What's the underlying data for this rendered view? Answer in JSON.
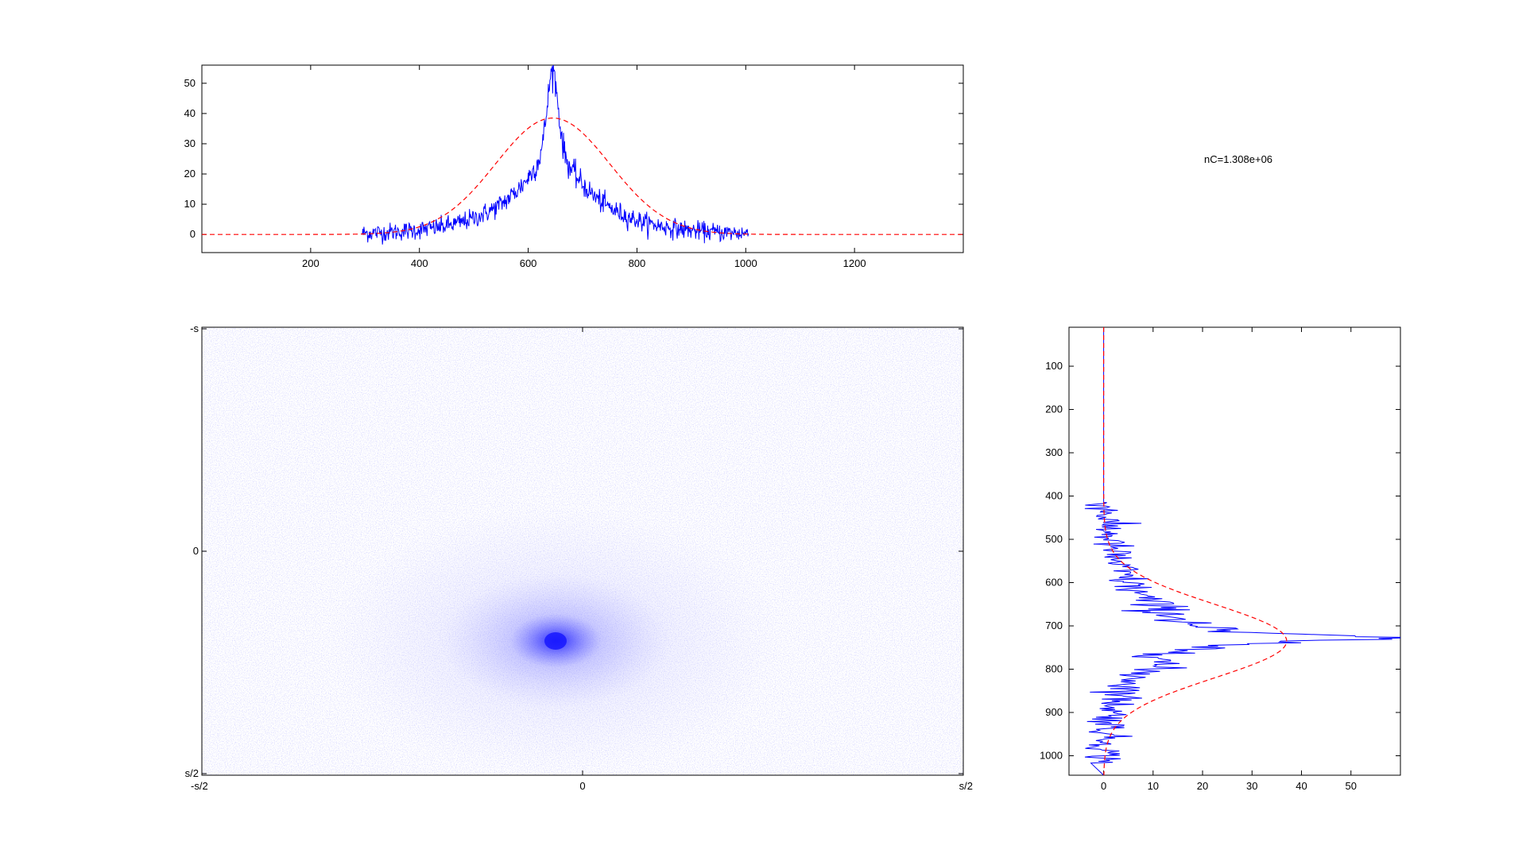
{
  "annotation": "nC=1.308e+06",
  "colors": {
    "measured": "#0000ff",
    "fit": "#ff0000",
    "axis": "#000000",
    "image_tint": "#4a4aff"
  },
  "chart_data": [
    {
      "id": "top-profile",
      "type": "line",
      "xlim": [
        0,
        1400
      ],
      "ylim": [
        -6,
        56
      ],
      "xticks": [
        200,
        400,
        600,
        800,
        1000,
        1200
      ],
      "yticks": [
        0,
        10,
        20,
        30,
        40,
        50
      ],
      "xtick_labels": [
        "200",
        "400",
        "600",
        "800",
        "1000",
        "1200"
      ],
      "ytick_labels": [
        "0",
        "10",
        "20",
        "30",
        "40",
        "50"
      ],
      "series": [
        {
          "style": "solid-blue",
          "x_range": [
            295,
            1005
          ],
          "peak_x": 645,
          "peak_y": 56,
          "baseline": 0,
          "noise": 1.5
        },
        {
          "style": "dashed-red",
          "model": "gaussian",
          "x_range": [
            0,
            1400
          ],
          "center": 645,
          "amplitude": 38.5,
          "sigma": 105
        }
      ]
    },
    {
      "id": "side-profile",
      "type": "line",
      "orientation": "vertical",
      "xlim": [
        -7,
        60
      ],
      "ylim": [
        1045,
        10
      ],
      "xticks": [
        0,
        10,
        20,
        30,
        40,
        50
      ],
      "yticks": [
        100,
        200,
        300,
        400,
        500,
        600,
        700,
        800,
        900,
        1000
      ],
      "xtick_labels": [
        "0",
        "10",
        "20",
        "30",
        "40",
        "50"
      ],
      "ytick_labels": [
        "100",
        "200",
        "300",
        "400",
        "500",
        "600",
        "700",
        "800",
        "900",
        "1000"
      ],
      "series": [
        {
          "style": "solid-blue",
          "y_range": [
            415,
            1020
          ],
          "peak_y": 728,
          "peak_x": 59,
          "baseline": 0,
          "noise": 2.0
        },
        {
          "style": "dashed-red",
          "model": "gaussian",
          "y_range": [
            10,
            1045
          ],
          "center": 735,
          "amplitude": 37,
          "sigma": 85
        }
      ]
    },
    {
      "id": "image-map",
      "type": "heatmap",
      "xtick_labels": [
        "-s/2",
        "0",
        "s/2"
      ],
      "ytick_labels": [
        "-s",
        "0",
        "s/2"
      ],
      "hotspot": {
        "x_frac": 0.465,
        "y_frac": 0.7
      }
    }
  ]
}
